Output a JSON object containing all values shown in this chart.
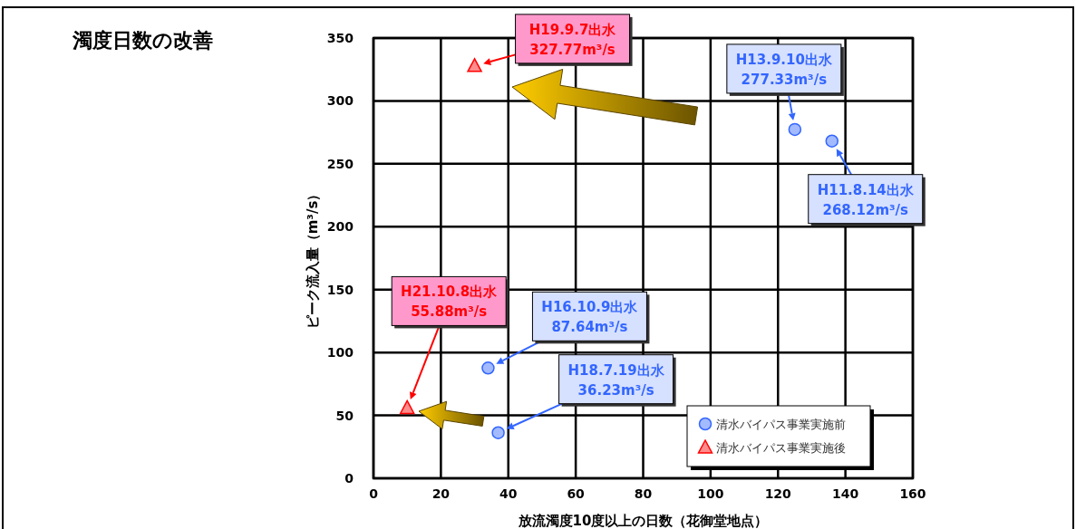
{
  "chart_data": {
    "type": "scatter",
    "title": "濁度日数の改善",
    "xlabel": "放流濁度10度以上の日数（花御堂地点）",
    "ylabel": "ピーク流入量（m³/s）",
    "xlim": [
      0,
      160
    ],
    "xticks": [
      0,
      20,
      40,
      60,
      80,
      100,
      120,
      140,
      160
    ],
    "ylim": [
      0,
      350
    ],
    "yticks": [
      0,
      50,
      100,
      150,
      200,
      250,
      300,
      350
    ],
    "grid": true,
    "legend": "bottom right",
    "series": [
      {
        "name": "清水バイパス事業実施前",
        "color": "#3366ff",
        "marker": "circle",
        "x": [
          136,
          125,
          34,
          37
        ],
        "values": [
          268.12,
          277.33,
          87.64,
          36.23
        ]
      },
      {
        "name": "清水バイパス事業実施後",
        "color": "#ff0000",
        "marker": "triangle",
        "x": [
          30,
          10
        ],
        "values": [
          327.77,
          55.88
        ]
      }
    ],
    "annotations": [
      "H19.9.7出水\n327.77m³/s",
      "H13.9.10出水\n277.33m³/s",
      "H11.8.14出水\n268.12m³/s",
      "H21.10.8出水\n55.88m³/s",
      "H16.10.9出水\n87.64m³/s",
      "H18.7.19出水\n36.23m³/s"
    ]
  }
}
